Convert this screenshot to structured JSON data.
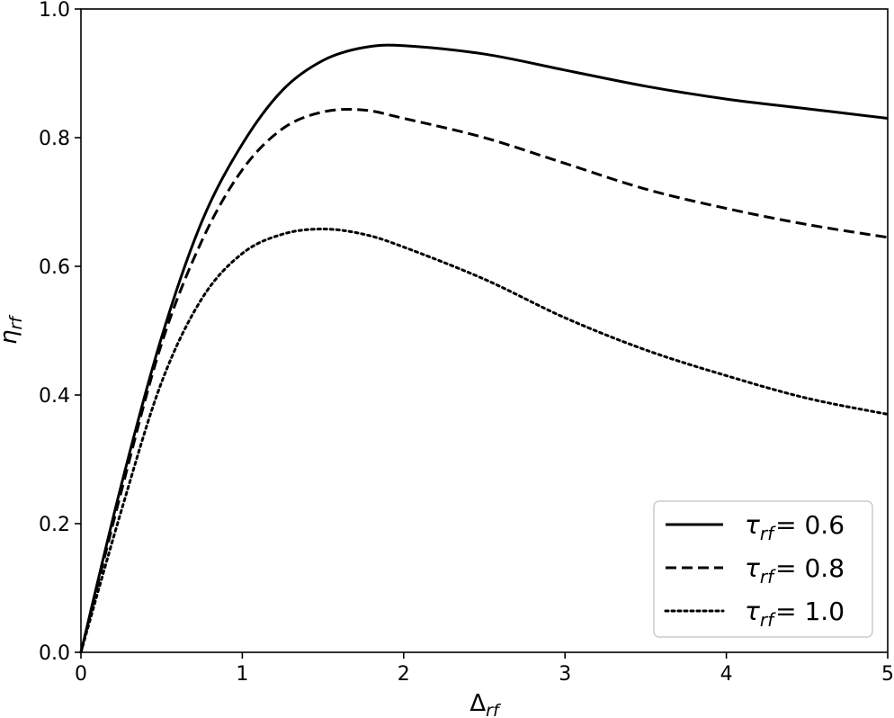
{
  "chart_data": {
    "type": "line",
    "xlabel": "Δ",
    "xlabel_sub": "rf",
    "ylabel": "η",
    "ylabel_sub": "rf",
    "xlim": [
      0,
      5
    ],
    "ylim": [
      0,
      1.0
    ],
    "xticks": [
      0,
      1,
      2,
      3,
      4,
      5
    ],
    "xtick_labels": [
      "0",
      "1",
      "2",
      "3",
      "4",
      "5"
    ],
    "yticks": [
      0,
      0.2,
      0.4,
      0.6,
      0.8,
      1.0
    ],
    "ytick_labels": [
      "0.0",
      "0.2",
      "0.4",
      "0.6",
      "0.8",
      "1.0"
    ],
    "grid": false,
    "legend_position": "bottom-right",
    "series": [
      {
        "name": "τ_rf = 0.6",
        "name_symbol": "τ",
        "name_sub": "rf",
        "name_value": "= 0.6",
        "style": "solid",
        "color": "#000000",
        "x": [
          0,
          0.25,
          0.5,
          0.75,
          1.0,
          1.25,
          1.5,
          1.75,
          2.0,
          2.5,
          3.0,
          3.5,
          4.0,
          4.5,
          5.0
        ],
        "y": [
          0,
          0.26,
          0.49,
          0.67,
          0.79,
          0.874,
          0.92,
          0.94,
          0.943,
          0.93,
          0.905,
          0.88,
          0.86,
          0.845,
          0.83
        ]
      },
      {
        "name": "τ_rf = 0.8",
        "name_symbol": "τ",
        "name_sub": "rf",
        "name_value": "= 0.8",
        "style": "dashed",
        "color": "#000000",
        "x": [
          0,
          0.25,
          0.5,
          0.75,
          1.0,
          1.25,
          1.5,
          1.75,
          2.0,
          2.5,
          3.0,
          3.5,
          4.0,
          4.5,
          5.0
        ],
        "y": [
          0,
          0.25,
          0.48,
          0.64,
          0.75,
          0.814,
          0.84,
          0.843,
          0.83,
          0.8,
          0.76,
          0.72,
          0.69,
          0.665,
          0.645
        ]
      },
      {
        "name": "τ_rf = 1.0",
        "name_symbol": "τ",
        "name_sub": "rf",
        "name_value": "= 1.0",
        "style": "dotted",
        "color": "#000000",
        "x": [
          0,
          0.25,
          0.5,
          0.75,
          1.0,
          1.25,
          1.5,
          1.75,
          2.0,
          2.5,
          3.0,
          3.5,
          4.0,
          4.5,
          5.0
        ],
        "y": [
          0,
          0.22,
          0.42,
          0.55,
          0.62,
          0.65,
          0.658,
          0.65,
          0.63,
          0.58,
          0.52,
          0.47,
          0.43,
          0.395,
          0.37
        ]
      }
    ]
  }
}
